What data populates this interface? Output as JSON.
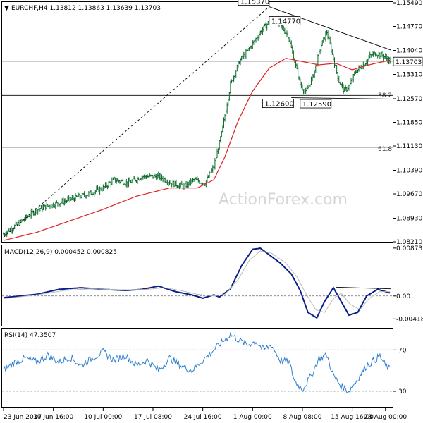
{
  "chart_data": [
    {
      "type": "candlestick",
      "title": "EURCHF,H4 1.13812 1.13863 1.13639 1.13703",
      "title_triangle": "▼",
      "watermark": "ActionForex.com",
      "current_price": "1.13703",
      "ylim": [
        1.0821,
        1.1549
      ],
      "y_ticks": [
        "1.15490",
        "1.14770",
        "1.14040",
        "1.13310",
        "1.12570",
        "1.11850",
        "1.11130",
        "1.10390",
        "1.09670",
        "1.08930",
        "1.08210"
      ],
      "x_ticks": [
        "23 Jun 2017",
        "30 Jun 16:00",
        "10 Jul 00:00",
        "17 Jul 08:00",
        "24 Jul 16:00",
        "1 Aug 00:00",
        "8 Aug 08:00",
        "15 Aug 16:00",
        "23 Aug 00:00"
      ],
      "fibonacci": [
        {
          "label": "38.2",
          "value": 1.1267
        },
        {
          "label": "61.8",
          "value": 1.1109
        }
      ],
      "price_labels": [
        {
          "text": "1.15370",
          "value": 1.1537
        },
        {
          "text": "1.14770",
          "value": 1.1477
        },
        {
          "text": "1.12600",
          "value": 1.126
        },
        {
          "text": "1.12590",
          "value": 1.1259
        }
      ],
      "anchors_close": [
        [
          0,
          1.0845
        ],
        [
          15,
          1.088
        ],
        [
          30,
          1.092
        ],
        [
          45,
          1.0935
        ],
        [
          60,
          1.095
        ],
        [
          75,
          1.0965
        ],
        [
          90,
          1.0985
        ],
        [
          100,
          1.101
        ],
        [
          112,
          1.1
        ],
        [
          125,
          1.102
        ],
        [
          140,
          1.102
        ],
        [
          152,
          1.1
        ],
        [
          163,
          1.099
        ],
        [
          172,
          1.101
        ],
        [
          182,
          1.1
        ],
        [
          190,
          1.105
        ],
        [
          197,
          1.115
        ],
        [
          205,
          1.13
        ],
        [
          213,
          1.137
        ],
        [
          222,
          1.141
        ],
        [
          232,
          1.146
        ],
        [
          242,
          1.15
        ],
        [
          250,
          1.148
        ],
        [
          257,
          1.145
        ],
        [
          263,
          1.137
        ],
        [
          268,
          1.13
        ],
        [
          273,
          1.1275
        ],
        [
          280,
          1.133
        ],
        [
          287,
          1.142
        ],
        [
          292,
          1.146
        ],
        [
          298,
          1.138
        ],
        [
          303,
          1.131
        ],
        [
          308,
          1.128
        ],
        [
          313,
          1.13
        ],
        [
          318,
          1.134
        ],
        [
          325,
          1.136
        ],
        [
          332,
          1.139
        ],
        [
          338,
          1.1395
        ],
        [
          344,
          1.1385
        ],
        [
          350,
          1.137
        ]
      ],
      "ma_anchors": [
        [
          0,
          1.0825
        ],
        [
          30,
          1.085
        ],
        [
          60,
          1.0885
        ],
        [
          90,
          1.092
        ],
        [
          120,
          1.096
        ],
        [
          150,
          1.0985
        ],
        [
          175,
          1.0985
        ],
        [
          190,
          1.101
        ],
        [
          200,
          1.108
        ],
        [
          212,
          1.119
        ],
        [
          225,
          1.128
        ],
        [
          240,
          1.135
        ],
        [
          255,
          1.138
        ],
        [
          270,
          1.137
        ],
        [
          285,
          1.136
        ],
        [
          300,
          1.1365
        ],
        [
          315,
          1.1345
        ],
        [
          330,
          1.136
        ],
        [
          350,
          1.1375
        ]
      ],
      "trendlines": [
        {
          "style": "dashed",
          "points": [
            [
              0,
              1.0835
            ],
            [
              240,
              1.1537
            ]
          ]
        },
        {
          "style": "solid",
          "points": [
            [
              240,
              1.1537
            ],
            [
              350,
              1.1405
            ]
          ]
        },
        {
          "style": "solid",
          "points": [
            [
              260,
              1.126
            ],
            [
              350,
              1.1256
            ]
          ]
        }
      ],
      "bars": 350
    },
    {
      "type": "line",
      "title": "MACD(12,26,9) 0.000452 0.000825",
      "ylim": [
        -0.0053,
        0.0091
      ],
      "y_ticks": [
        "0.008732",
        "0.00",
        "-0.004184"
      ],
      "y_tick_values": [
        0.008732,
        0.0,
        -0.004184
      ],
      "series": [
        {
          "values_anchors": [
            [
              0,
              -0.0003
            ],
            [
              30,
              0.0003
            ],
            [
              50,
              0.0012
            ],
            [
              70,
              0.0015
            ],
            [
              90,
              0.0012
            ],
            [
              110,
              0.001
            ],
            [
              125,
              0.0012
            ],
            [
              140,
              0.0018
            ],
            [
              155,
              0.0008
            ],
            [
              170,
              0.0002
            ],
            [
              180,
              -0.0004
            ],
            [
              190,
              0.0002
            ],
            [
              195,
              -0.0002
            ],
            [
              205,
              0.0013
            ],
            [
              215,
              0.0055
            ],
            [
              225,
              0.0085
            ],
            [
              232,
              0.0087
            ],
            [
              240,
              0.0075
            ],
            [
              250,
              0.006
            ],
            [
              260,
              0.004
            ],
            [
              268,
              0.001
            ],
            [
              275,
              -0.003
            ],
            [
              283,
              -0.004
            ],
            [
              290,
              -0.001
            ],
            [
              298,
              0.0015
            ],
            [
              305,
              -0.001
            ],
            [
              312,
              -0.0035
            ],
            [
              320,
              -0.003
            ],
            [
              328,
              0.0
            ],
            [
              338,
              0.0012
            ],
            [
              345,
              0.0008
            ],
            [
              350,
              0.0005
            ]
          ]
        },
        {
          "values_anchors": [
            [
              0,
              -0.0005
            ],
            [
              30,
              0.0002
            ],
            [
              55,
              0.001
            ],
            [
              80,
              0.0013
            ],
            [
              110,
              0.0011
            ],
            [
              130,
              0.0012
            ],
            [
              145,
              0.0015
            ],
            [
              160,
              0.001
            ],
            [
              175,
              0.0003
            ],
            [
              190,
              0.0
            ],
            [
              200,
              0.0003
            ],
            [
              212,
              0.003
            ],
            [
              222,
              0.0065
            ],
            [
              232,
              0.0082
            ],
            [
              242,
              0.0078
            ],
            [
              255,
              0.006
            ],
            [
              265,
              0.0035
            ],
            [
              273,
              0.0005
            ],
            [
              282,
              -0.0025
            ],
            [
              290,
              -0.003
            ],
            [
              298,
              -0.0005
            ],
            [
              305,
              0.0005
            ],
            [
              313,
              -0.0015
            ],
            [
              322,
              -0.0025
            ],
            [
              330,
              -0.0005
            ],
            [
              340,
              0.0008
            ],
            [
              350,
              0.0008
            ]
          ]
        }
      ],
      "trendline": [
        [
          300,
          0.0016
        ],
        [
          350,
          0.0013
        ]
      ]
    },
    {
      "type": "line",
      "title": "RSI(14) 47.3507",
      "ylim": [
        15,
        90
      ],
      "y_ticks": [
        "70",
        "30"
      ],
      "y_tick_values": [
        70,
        30
      ],
      "series": [
        {
          "values_anchors": [
            [
              0,
              50
            ],
            [
              10,
              58
            ],
            [
              20,
              62
            ],
            [
              30,
              58
            ],
            [
              40,
              65
            ],
            [
              50,
              58
            ],
            [
              60,
              63
            ],
            [
              70,
              55
            ],
            [
              80,
              62
            ],
            [
              90,
              68
            ],
            [
              100,
              60
            ],
            [
              110,
              65
            ],
            [
              120,
              55
            ],
            [
              130,
              60
            ],
            [
              140,
              50
            ],
            [
              150,
              62
            ],
            [
              160,
              55
            ],
            [
              170,
              50
            ],
            [
              180,
              60
            ],
            [
              190,
              70
            ],
            [
              198,
              78
            ],
            [
              205,
              85
            ],
            [
              212,
              80
            ],
            [
              220,
              75
            ],
            [
              228,
              78
            ],
            [
              235,
              70
            ],
            [
              242,
              75
            ],
            [
              250,
              60
            ],
            [
              258,
              58
            ],
            [
              263,
              40
            ],
            [
              270,
              32
            ],
            [
              278,
              45
            ],
            [
              285,
              62
            ],
            [
              292,
              65
            ],
            [
              298,
              45
            ],
            [
              305,
              35
            ],
            [
              312,
              30
            ],
            [
              320,
              42
            ],
            [
              328,
              55
            ],
            [
              335,
              60
            ],
            [
              340,
              64
            ],
            [
              345,
              55
            ],
            [
              350,
              50
            ]
          ]
        }
      ]
    }
  ]
}
